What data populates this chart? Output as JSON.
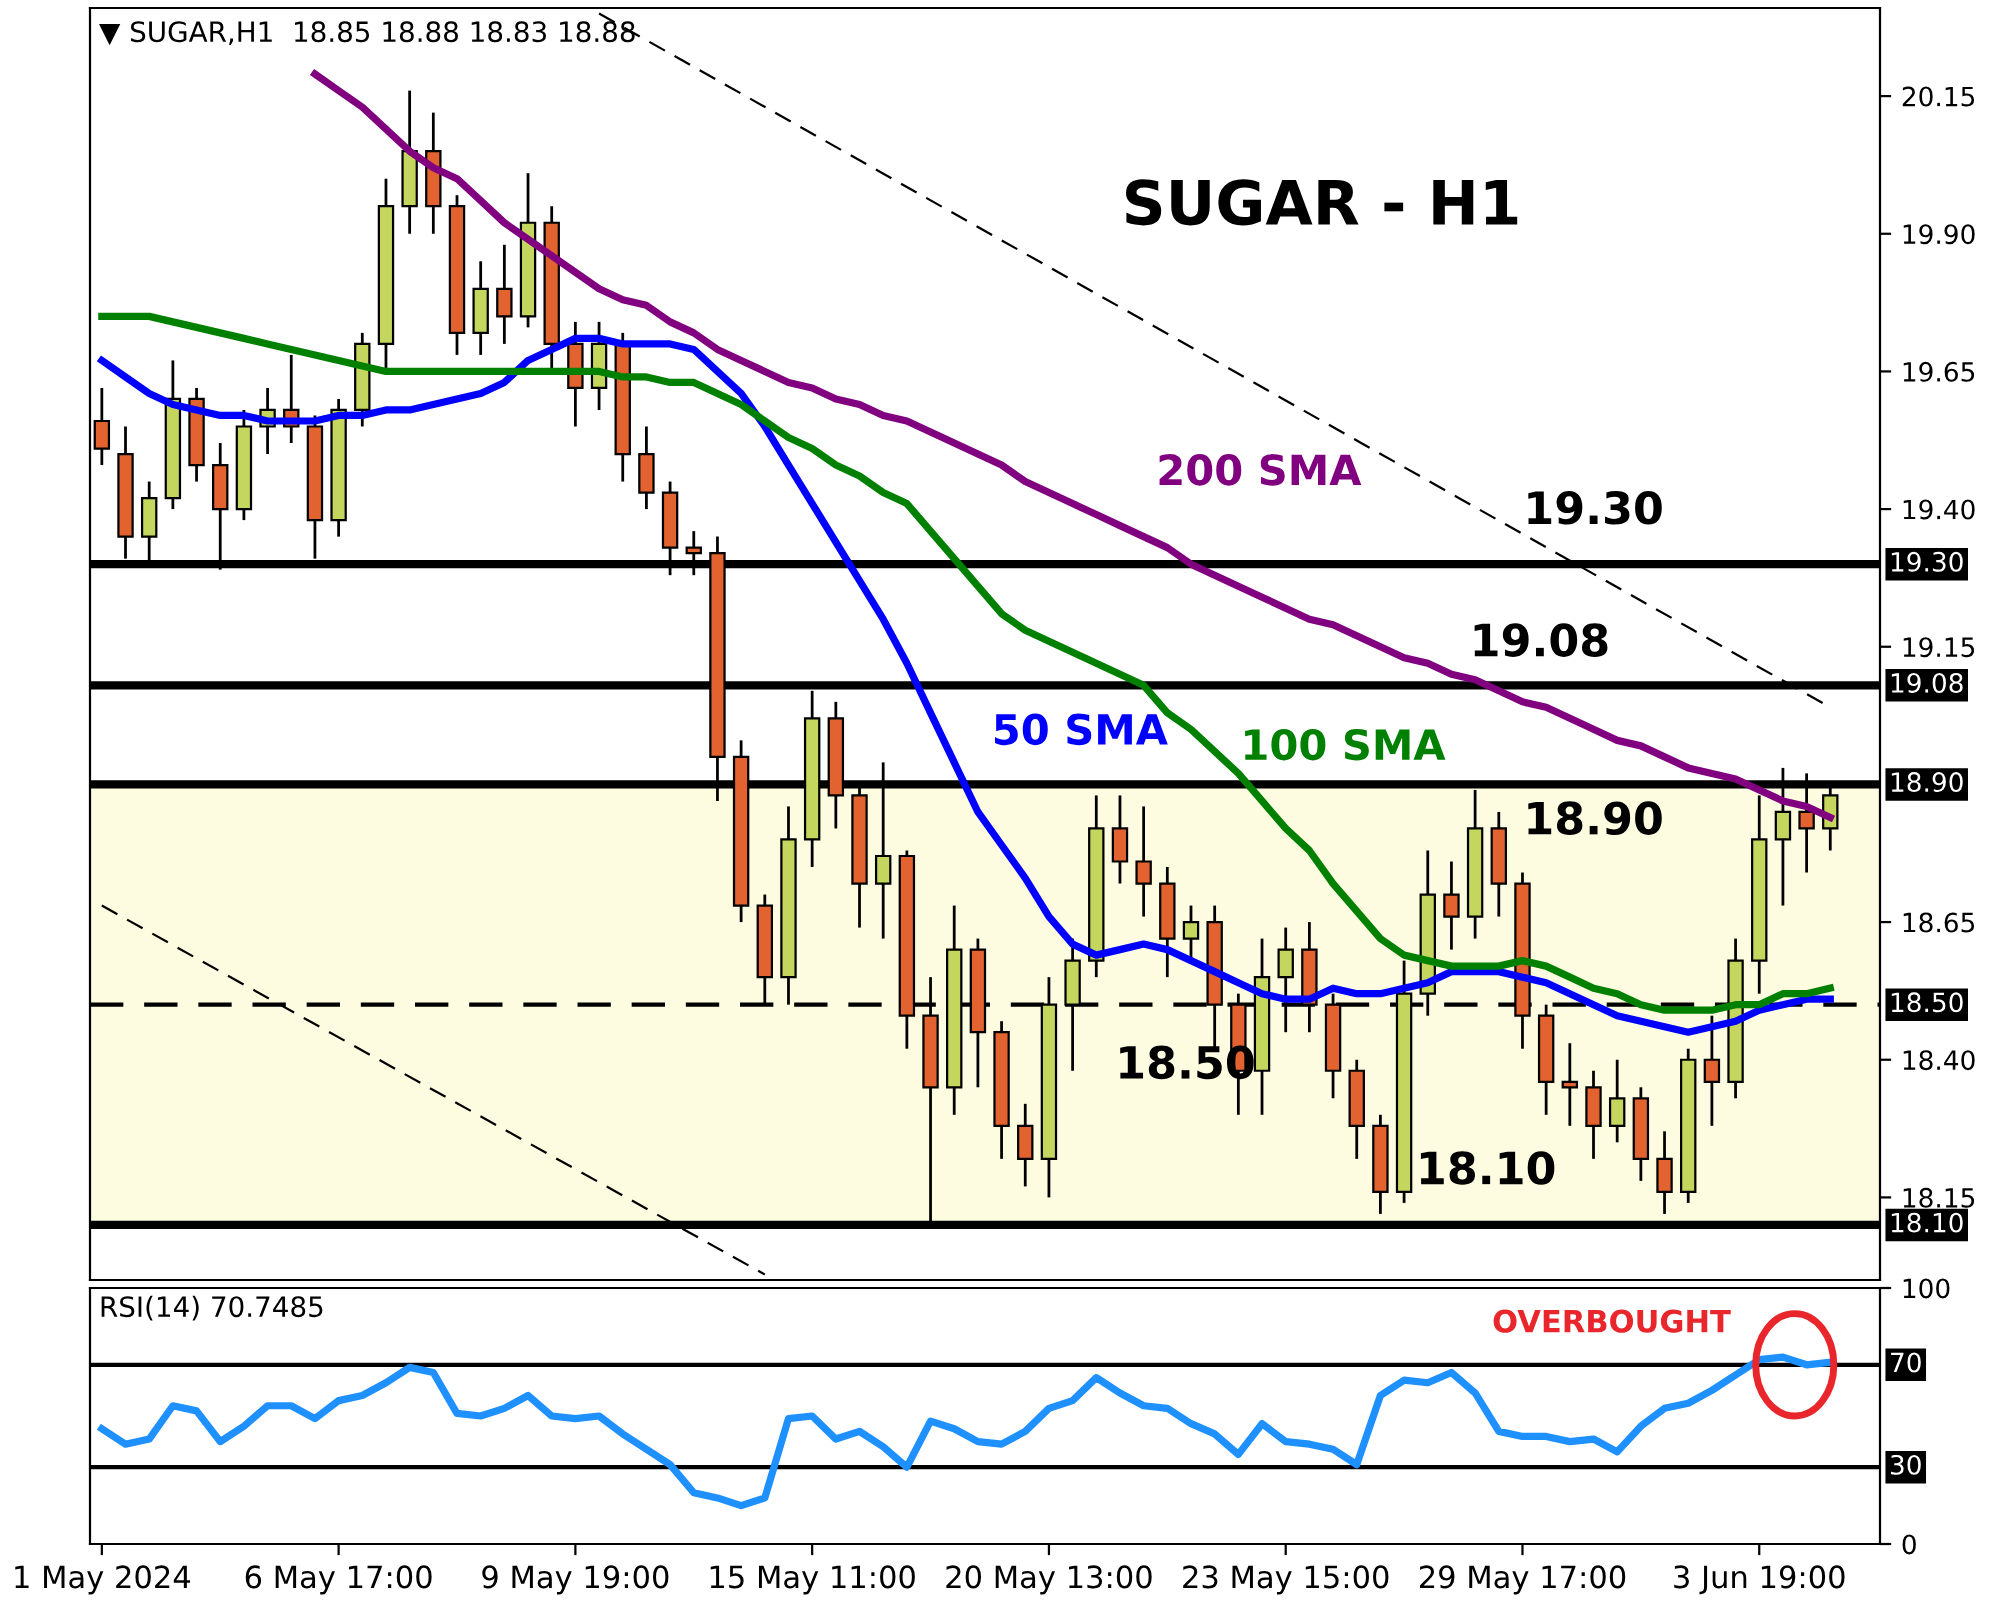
{
  "chart_data": [
    {
      "type": "candlestick",
      "title": "SUGAR - H1",
      "subtitle": "▼ SUGAR,H1  18.85 18.88 18.83 18.88",
      "categories": [
        null,
        null,
        null,
        null,
        null,
        null,
        null,
        null,
        null,
        null,
        null,
        null,
        null,
        null,
        null,
        null,
        null,
        null,
        null,
        null,
        null,
        null,
        null,
        null,
        null,
        null,
        null,
        null,
        null,
        null,
        null,
        null,
        null,
        null,
        null,
        null,
        null,
        null,
        null,
        null,
        null,
        null,
        null,
        null,
        null,
        null,
        null,
        null,
        null,
        null,
        null,
        null,
        null,
        null,
        null,
        null,
        null,
        null,
        null,
        null,
        null,
        null,
        null,
        null,
        null,
        null,
        null,
        null,
        null,
        null,
        null,
        null,
        null,
        null
      ],
      "ohlc": [
        [
          19.56,
          19.62,
          19.48,
          19.51
        ],
        [
          19.5,
          19.55,
          19.31,
          19.35
        ],
        [
          19.35,
          19.45,
          19.3,
          19.42
        ],
        [
          19.42,
          19.67,
          19.4,
          19.6
        ],
        [
          19.6,
          19.62,
          19.45,
          19.48
        ],
        [
          19.48,
          19.52,
          19.29,
          19.4
        ],
        [
          19.4,
          19.58,
          19.38,
          19.55
        ],
        [
          19.55,
          19.62,
          19.5,
          19.58
        ],
        [
          19.58,
          19.68,
          19.52,
          19.55
        ],
        [
          19.55,
          19.57,
          19.31,
          19.38
        ],
        [
          19.38,
          19.6,
          19.35,
          19.58
        ],
        [
          19.58,
          19.72,
          19.55,
          19.7
        ],
        [
          19.7,
          20.0,
          19.65,
          19.95
        ],
        [
          19.95,
          20.16,
          19.9,
          20.05
        ],
        [
          20.05,
          20.12,
          19.9,
          19.95
        ],
        [
          19.95,
          19.97,
          19.68,
          19.72
        ],
        [
          19.72,
          19.85,
          19.68,
          19.8
        ],
        [
          19.8,
          19.88,
          19.7,
          19.75
        ],
        [
          19.75,
          20.01,
          19.73,
          19.92
        ],
        [
          19.92,
          19.95,
          19.65,
          19.7
        ],
        [
          19.7,
          19.74,
          19.55,
          19.62
        ],
        [
          19.62,
          19.74,
          19.58,
          19.7
        ],
        [
          19.7,
          19.72,
          19.45,
          19.5
        ],
        [
          19.5,
          19.55,
          19.4,
          19.43
        ],
        [
          19.43,
          19.45,
          19.28,
          19.33
        ],
        [
          19.33,
          19.36,
          19.28,
          19.32
        ],
        [
          19.32,
          19.35,
          18.87,
          18.95
        ],
        [
          18.95,
          18.98,
          18.65,
          18.68
        ],
        [
          18.68,
          18.7,
          18.5,
          18.55
        ],
        [
          18.55,
          18.86,
          18.5,
          18.8
        ],
        [
          18.8,
          19.07,
          18.75,
          19.02
        ],
        [
          19.02,
          19.05,
          18.82,
          18.88
        ],
        [
          18.88,
          18.9,
          18.64,
          18.72
        ],
        [
          18.72,
          18.94,
          18.62,
          18.77
        ],
        [
          18.77,
          18.78,
          18.42,
          18.48
        ],
        [
          18.48,
          18.55,
          18.1,
          18.35
        ],
        [
          18.35,
          18.68,
          18.3,
          18.6
        ],
        [
          18.6,
          18.62,
          18.35,
          18.45
        ],
        [
          18.45,
          18.47,
          18.22,
          18.28
        ],
        [
          18.28,
          18.32,
          18.17,
          18.22
        ],
        [
          18.22,
          18.55,
          18.15,
          18.5
        ],
        [
          18.5,
          18.62,
          18.38,
          18.58
        ],
        [
          18.58,
          18.88,
          18.55,
          18.82
        ],
        [
          18.82,
          18.88,
          18.72,
          18.76
        ],
        [
          18.76,
          18.86,
          18.66,
          18.72
        ],
        [
          18.72,
          18.75,
          18.55,
          18.62
        ],
        [
          18.62,
          18.68,
          18.58,
          18.65
        ],
        [
          18.65,
          18.68,
          18.42,
          18.5
        ],
        [
          18.5,
          18.52,
          18.3,
          18.38
        ],
        [
          18.38,
          18.62,
          18.3,
          18.55
        ],
        [
          18.55,
          18.64,
          18.45,
          18.6
        ],
        [
          18.6,
          18.65,
          18.45,
          18.5
        ],
        [
          18.5,
          18.52,
          18.33,
          18.38
        ],
        [
          18.38,
          18.4,
          18.22,
          18.28
        ],
        [
          18.28,
          18.3,
          18.12,
          18.16
        ],
        [
          18.16,
          18.58,
          18.14,
          18.52
        ],
        [
          18.52,
          18.78,
          18.48,
          18.7
        ],
        [
          18.7,
          18.76,
          18.6,
          18.66
        ],
        [
          18.66,
          18.89,
          18.62,
          18.82
        ],
        [
          18.82,
          18.85,
          18.66,
          18.72
        ],
        [
          18.72,
          18.74,
          18.42,
          18.48
        ],
        [
          18.48,
          18.5,
          18.3,
          18.36
        ],
        [
          18.36,
          18.43,
          18.28,
          18.35
        ],
        [
          18.35,
          18.38,
          18.22,
          18.28
        ],
        [
          18.28,
          18.4,
          18.25,
          18.33
        ],
        [
          18.33,
          18.35,
          18.18,
          18.22
        ],
        [
          18.22,
          18.27,
          18.12,
          18.16
        ],
        [
          18.16,
          18.42,
          18.14,
          18.4
        ],
        [
          18.4,
          18.48,
          18.28,
          18.36
        ],
        [
          18.36,
          18.62,
          18.33,
          18.58
        ],
        [
          18.58,
          18.88,
          18.52,
          18.8
        ],
        [
          18.8,
          18.93,
          18.68,
          18.85
        ],
        [
          18.85,
          18.92,
          18.74,
          18.82
        ],
        [
          18.82,
          18.9,
          18.78,
          18.88
        ]
      ],
      "colors": [
        "#e2632f",
        "#e2632f",
        "#c5d65e",
        "#c5d65e",
        "#e2632f",
        "#e2632f",
        "#c5d65e",
        "#c5d65e",
        "#e2632f",
        "#e2632f",
        "#c5d65e",
        "#c5d65e",
        "#c5d65e",
        "#c5d65e",
        "#e2632f",
        "#e2632f",
        "#c5d65e",
        "#e2632f",
        "#c5d65e",
        "#e2632f",
        "#e2632f",
        "#c5d65e",
        "#e2632f",
        "#e2632f",
        "#e2632f",
        "#e2632f",
        "#e2632f",
        "#e2632f",
        "#e2632f",
        "#c5d65e",
        "#c5d65e",
        "#e2632f",
        "#e2632f",
        "#c5d65e",
        "#e2632f",
        "#e2632f",
        "#c5d65e",
        "#e2632f",
        "#e2632f",
        "#e2632f",
        "#c5d65e",
        "#c5d65e",
        "#c5d65e",
        "#e2632f",
        "#e2632f",
        "#e2632f",
        "#c5d65e",
        "#e2632f",
        "#e2632f",
        "#c5d65e",
        "#c5d65e",
        "#e2632f",
        "#e2632f",
        "#e2632f",
        "#e2632f",
        "#c5d65e",
        "#c5d65e",
        "#e2632f",
        "#c5d65e",
        "#e2632f",
        "#e2632f",
        "#e2632f",
        "#e2632f",
        "#e2632f",
        "#c5d65e",
        "#e2632f",
        "#e2632f",
        "#c5d65e",
        "#e2632f",
        "#c5d65e",
        "#c5d65e",
        "#c5d65e",
        "#e2632f",
        "#c5d65e"
      ],
      "series": [
        {
          "name": "50 SMA",
          "type": "line",
          "color": "#0000ff",
          "values": [
            19.67,
            19.64,
            19.61,
            19.59,
            19.58,
            19.57,
            19.57,
            19.56,
            19.56,
            19.56,
            19.57,
            19.57,
            19.58,
            19.58,
            19.59,
            19.6,
            19.61,
            19.63,
            19.67,
            19.69,
            19.71,
            19.71,
            19.7,
            19.7,
            19.7,
            19.69,
            19.65,
            19.61,
            19.55,
            19.48,
            19.41,
            19.34,
            19.27,
            19.2,
            19.12,
            19.03,
            18.94,
            18.85,
            18.79,
            18.73,
            18.66,
            18.61,
            18.59,
            18.6,
            18.61,
            18.6,
            18.58,
            18.56,
            18.54,
            18.52,
            18.51,
            18.51,
            18.53,
            18.52,
            18.52,
            18.53,
            18.54,
            18.56,
            18.56,
            18.56,
            18.55,
            18.54,
            18.52,
            18.5,
            18.48,
            18.47,
            18.46,
            18.45,
            18.46,
            18.47,
            18.49,
            18.5,
            18.51,
            18.51
          ]
        },
        {
          "name": "100 SMA",
          "type": "line",
          "color": "#008000",
          "values": [
            19.75,
            19.75,
            19.75,
            19.74,
            19.73,
            19.72,
            19.71,
            19.7,
            19.69,
            19.68,
            19.67,
            19.66,
            19.65,
            19.65,
            19.65,
            19.65,
            19.65,
            19.65,
            19.65,
            19.65,
            19.65,
            19.65,
            19.64,
            19.64,
            19.63,
            19.63,
            19.61,
            19.59,
            19.56,
            19.53,
            19.51,
            19.48,
            19.46,
            19.43,
            19.41,
            19.36,
            19.31,
            19.26,
            19.21,
            19.18,
            19.16,
            19.14,
            19.12,
            19.1,
            19.08,
            19.03,
            19.0,
            18.96,
            18.92,
            18.87,
            18.82,
            18.78,
            18.72,
            18.67,
            18.62,
            18.59,
            18.58,
            18.57,
            18.57,
            18.57,
            18.58,
            18.57,
            18.55,
            18.53,
            18.52,
            18.5,
            18.49,
            18.49,
            18.49,
            18.5,
            18.5,
            18.52,
            18.52,
            18.53
          ]
        },
        {
          "name": "200 SMA",
          "type": "line",
          "color": "#800080",
          "values": [
            null,
            null,
            null,
            null,
            null,
            null,
            null,
            null,
            null,
            20.19,
            20.16,
            20.13,
            20.09,
            20.05,
            20.02,
            20.0,
            19.96,
            19.92,
            19.89,
            19.86,
            19.83,
            19.8,
            19.78,
            19.77,
            19.74,
            19.72,
            19.69,
            19.67,
            19.65,
            19.63,
            19.62,
            19.6,
            19.59,
            19.57,
            19.56,
            19.54,
            19.52,
            19.5,
            19.48,
            19.45,
            19.43,
            19.41,
            19.39,
            19.37,
            19.35,
            19.33,
            19.3,
            19.28,
            19.26,
            19.24,
            19.22,
            19.2,
            19.19,
            19.17,
            19.15,
            19.13,
            19.12,
            19.1,
            19.09,
            19.07,
            19.05,
            19.04,
            19.02,
            19.0,
            18.98,
            18.97,
            18.95,
            18.93,
            18.92,
            18.91,
            18.89,
            18.87,
            18.86,
            18.84
          ]
        },
        {
          "type": "line",
          "color": "#000000",
          "line_style": "dashed",
          "values": [
            null,
            null,
            null,
            null,
            null,
            null,
            null,
            null,
            null,
            null,
            null,
            null,
            null,
            null,
            null,
            null,
            null,
            null,
            null,
            null,
            null,
            20.3,
            null,
            null,
            null,
            null,
            null,
            null,
            null,
            null,
            null,
            null,
            null,
            null,
            null,
            null,
            null,
            null,
            null,
            null,
            null,
            null,
            null,
            null,
            null,
            null,
            null,
            null,
            null,
            null,
            null,
            null,
            null,
            null,
            null,
            null,
            null,
            null,
            null,
            null,
            null,
            null,
            null,
            null,
            null,
            null,
            null,
            null,
            null,
            null,
            null,
            null,
            null,
            19.04
          ]
        },
        {
          "type": "line",
          "color": "#000000",
          "line_style": "dashed",
          "values": [
            18.68,
            null,
            null,
            null,
            null,
            null,
            null,
            null,
            null,
            null,
            null,
            null,
            null,
            null,
            null,
            null,
            null,
            null,
            null,
            null,
            null,
            null,
            null,
            null,
            null,
            null,
            null,
            null,
            18.01,
            null,
            null,
            null,
            null,
            null,
            null,
            null,
            null,
            null,
            null,
            null,
            null,
            null,
            null,
            null,
            null,
            null,
            null,
            null,
            null,
            null,
            null,
            null,
            null,
            null,
            null,
            null,
            null,
            null,
            null,
            null,
            null,
            null,
            null,
            null,
            null,
            null,
            null,
            null,
            null,
            null,
            null,
            null,
            null,
            null
          ]
        }
      ],
      "ylim": [
        18.0,
        20.31
      ],
      "yticks": [
        20.15,
        {
          "value": 19.9,
          "label": "19.90"
        },
        19.65,
        {
          "value": 19.4,
          "label": "19.40"
        },
        19.15,
        18.65,
        {
          "value": 18.4,
          "label": "18.40"
        },
        18.15
      ],
      "ref_lines": [
        {
          "axis": "y",
          "value": 19.3,
          "label": "19.30",
          "color": "#000000",
          "line_style": "solid"
        },
        {
          "axis": "y",
          "value": 19.08,
          "label": "19.08",
          "color": "#000000",
          "line_style": "solid"
        },
        {
          "axis": "y",
          "value": 18.9,
          "label": "18.90",
          "color": "#000000",
          "line_style": "solid"
        },
        {
          "axis": "y",
          "value": 18.5,
          "label": "18.50",
          "color": "#000000",
          "line_style": "dashed"
        },
        {
          "axis": "y",
          "value": 18.1,
          "label": "18.10",
          "color": "#000000",
          "line_style": "solid"
        }
      ],
      "bands": [
        {
          "axis": "y",
          "from": 18.1,
          "to": 18.9,
          "color": "#fdfbe0"
        }
      ],
      "annotations": [
        "19.30",
        "19.08",
        "18.90",
        "18.50",
        "18.10"
      ],
      "tick_labels": "y"
    },
    {
      "type": "line",
      "subtitle": "RSI(14) 70.7485",
      "categories": [
        "1 May 2024",
        null,
        null,
        null,
        null,
        null,
        null,
        null,
        null,
        null,
        "6 May 17:00",
        null,
        null,
        null,
        null,
        null,
        null,
        null,
        null,
        null,
        "9 May 19:00",
        null,
        null,
        null,
        null,
        null,
        null,
        null,
        null,
        null,
        "15 May 11:00",
        null,
        null,
        null,
        null,
        null,
        null,
        null,
        null,
        null,
        "20 May 13:00",
        null,
        null,
        null,
        null,
        null,
        null,
        null,
        null,
        null,
        "23 May 15:00",
        null,
        null,
        null,
        null,
        null,
        null,
        null,
        null,
        null,
        "29 May 17:00",
        null,
        null,
        null,
        null,
        null,
        null,
        null,
        null,
        null,
        "3 Jun 19:00",
        null,
        null,
        null
      ],
      "series": [
        {
          "color": "#1e90ff",
          "values": [
            45,
            39,
            41,
            54,
            52,
            40,
            46,
            54,
            54,
            49,
            56,
            58,
            63,
            69,
            67,
            51,
            50,
            53,
            58,
            50,
            49,
            50,
            43,
            37,
            31,
            20,
            18,
            15,
            18,
            49,
            50,
            41,
            44,
            38,
            30,
            48,
            45,
            40,
            39,
            44,
            53,
            56,
            65,
            59,
            54,
            53,
            47,
            43,
            35,
            47,
            40,
            39,
            37,
            31,
            58,
            64,
            63,
            67,
            59,
            44,
            42,
            42,
            40,
            41,
            36,
            46,
            53,
            55,
            60,
            66,
            72,
            73,
            70,
            71
          ]
        }
      ],
      "ylim": [
        0,
        100
      ],
      "yticks": [
        0,
        100
      ],
      "ref_lines": [
        {
          "axis": "y",
          "value": 70,
          "label": "70",
          "color": "#000000",
          "line_style": "solid"
        },
        {
          "axis": "y",
          "value": 30,
          "label": "30",
          "color": "#000000",
          "line_style": "solid"
        }
      ],
      "annotations": [
        "OVERBOUGHT"
      ]
    }
  ]
}
